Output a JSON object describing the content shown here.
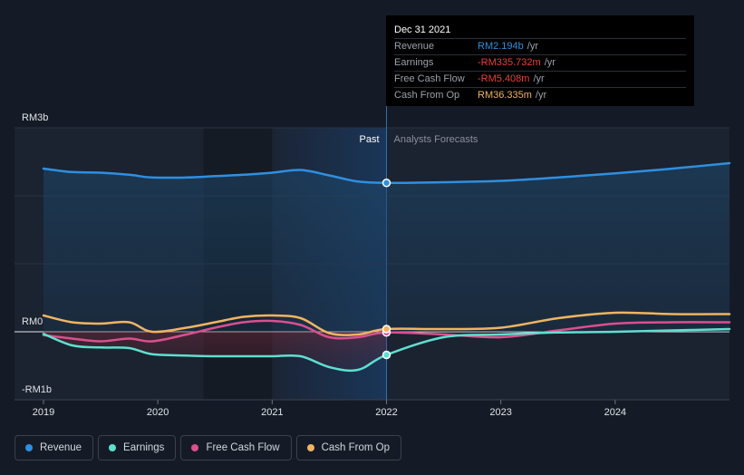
{
  "tooltip": {
    "date": "Dec 31 2021",
    "rows": [
      {
        "label": "Revenue",
        "value": "RM2.194b",
        "unit": "/yr",
        "color": "#2f8fe0"
      },
      {
        "label": "Earnings",
        "value": "-RM335.732m",
        "unit": "/yr",
        "color": "#e8413b"
      },
      {
        "label": "Free Cash Flow",
        "value": "-RM5.408m",
        "unit": "/yr",
        "color": "#e8413b"
      },
      {
        "label": "Cash From Op",
        "value": "RM36.335m",
        "unit": "/yr",
        "color": "#f0b461"
      }
    ]
  },
  "legend": [
    {
      "label": "Revenue",
      "color": "#2f8fe0"
    },
    {
      "label": "Earnings",
      "color": "#5ee0cf"
    },
    {
      "label": "Free Cash Flow",
      "color": "#d9508f"
    },
    {
      "label": "Cash From Op",
      "color": "#f0b461"
    }
  ],
  "chart_data": {
    "type": "line",
    "y_unit_labels": {
      "top": "RM3b",
      "zero": "RM0",
      "bottom": "-RM1b"
    },
    "ylim": [
      -1,
      3
    ],
    "xlim": [
      2019.0,
      2025.0
    ],
    "x_ticks": [
      "2019",
      "2020",
      "2021",
      "2022",
      "2023",
      "2024"
    ],
    "x_tick_values": [
      2019,
      2020,
      2021,
      2022,
      2023,
      2024
    ],
    "divider_x": 2022.0,
    "past_label": "Past",
    "forecast_label": "Analysts Forecasts",
    "series": [
      {
        "name": "Revenue",
        "color": "#2f8fe0",
        "x": [
          2019.0,
          2019.25,
          2019.5,
          2019.75,
          2019.95,
          2020.25,
          2020.5,
          2020.75,
          2021.0,
          2021.25,
          2021.5,
          2021.75,
          2022.0,
          2022.5,
          2023.0,
          2023.5,
          2024.0,
          2024.5,
          2025.0
        ],
        "y": [
          2.4,
          2.35,
          2.34,
          2.31,
          2.27,
          2.27,
          2.29,
          2.31,
          2.34,
          2.38,
          2.3,
          2.21,
          2.19,
          2.2,
          2.22,
          2.27,
          2.33,
          2.4,
          2.48
        ]
      },
      {
        "name": "Earnings",
        "color": "#5ee0cf",
        "x": [
          2019.0,
          2019.25,
          2019.5,
          2019.75,
          2019.95,
          2020.25,
          2020.5,
          2020.75,
          2021.0,
          2021.25,
          2021.5,
          2021.75,
          2022.0,
          2022.5,
          2023.0,
          2023.5,
          2024.0,
          2024.5,
          2025.0
        ],
        "y": [
          -0.03,
          -0.2,
          -0.23,
          -0.24,
          -0.33,
          -0.35,
          -0.36,
          -0.36,
          -0.36,
          -0.36,
          -0.52,
          -0.56,
          -0.34,
          -0.08,
          -0.04,
          -0.01,
          0.0,
          0.02,
          0.04
        ]
      },
      {
        "name": "Free Cash Flow",
        "color": "#d9508f",
        "x": [
          2019.0,
          2019.25,
          2019.5,
          2019.75,
          2019.95,
          2020.25,
          2020.5,
          2020.75,
          2021.0,
          2021.25,
          2021.5,
          2021.75,
          2022.0,
          2022.5,
          2023.0,
          2023.5,
          2024.0,
          2024.5,
          2025.0
        ],
        "y": [
          -0.05,
          -0.1,
          -0.14,
          -0.1,
          -0.14,
          -0.04,
          0.06,
          0.14,
          0.16,
          0.1,
          -0.08,
          -0.08,
          -0.01,
          -0.04,
          -0.08,
          0.02,
          0.12,
          0.14,
          0.14
        ]
      },
      {
        "name": "Cash From Op",
        "color": "#f0b461",
        "x": [
          2019.0,
          2019.25,
          2019.5,
          2019.75,
          2019.95,
          2020.25,
          2020.5,
          2020.75,
          2021.0,
          2021.25,
          2021.5,
          2021.75,
          2022.0,
          2022.5,
          2023.0,
          2023.5,
          2024.0,
          2024.5,
          2025.0
        ],
        "y": [
          0.24,
          0.14,
          0.12,
          0.14,
          0.0,
          0.06,
          0.14,
          0.22,
          0.24,
          0.2,
          -0.02,
          -0.04,
          0.04,
          0.04,
          0.06,
          0.2,
          0.28,
          0.26,
          0.26
        ]
      }
    ],
    "highlight_points": [
      {
        "series": "Revenue",
        "x": 2022.0,
        "y": 2.19
      },
      {
        "series": "Earnings",
        "x": 2022.0,
        "y": -0.34
      },
      {
        "series": "Free Cash Flow",
        "x": 2022.0,
        "y": -0.01
      },
      {
        "series": "Cash From Op",
        "x": 2022.0,
        "y": 0.04
      }
    ]
  }
}
